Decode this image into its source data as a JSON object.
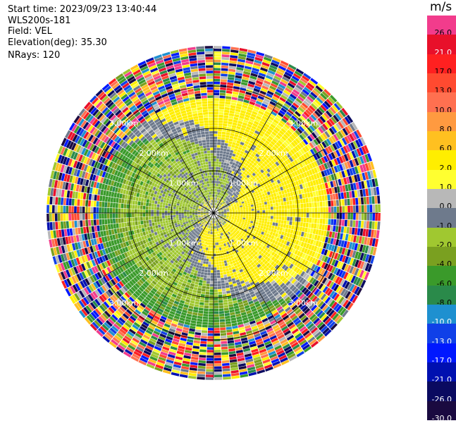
{
  "info": {
    "start_time": "Start time: 2023/09/23 13:40:44",
    "instrument": "WLS200s-181",
    "field": "Field: VEL",
    "elevation": "Elevation(deg): 35.30",
    "nrays": "NRays: 120"
  },
  "colorbar": {
    "unit": "m/s",
    "bins": [
      {
        "label": "26.0",
        "color": "#f23c8c"
      },
      {
        "label": "21.0",
        "color": "#e8102a"
      },
      {
        "label": "17.0",
        "color": "#ff2020"
      },
      {
        "label": "13.0",
        "color": "#ff4a30"
      },
      {
        "label": "10.0",
        "color": "#ff7050"
      },
      {
        "label": "8.0",
        "color": "#ff9a40"
      },
      {
        "label": "6.0",
        "color": "#ffc020"
      },
      {
        "label": "2.0",
        "color": "#ffee00"
      },
      {
        "label": "1.0",
        "color": "#ffff30"
      },
      {
        "label": "0.0",
        "color": "#b8b8b8"
      },
      {
        "label": "-1.0",
        "color": "#6e7a8c"
      },
      {
        "label": "-2.0",
        "color": "#a0c830"
      },
      {
        "label": "-4.0",
        "color": "#7aa020"
      },
      {
        "label": "-6.0",
        "color": "#3a9a2a"
      },
      {
        "label": "-8.0",
        "color": "#2a8a4a"
      },
      {
        "label": "-10.0",
        "color": "#1e90d0"
      },
      {
        "label": "-13.0",
        "color": "#1040e8"
      },
      {
        "label": "-17.0",
        "color": "#0018ff"
      },
      {
        "label": "-21.0",
        "color": "#0010b0"
      },
      {
        "label": "-26.0",
        "color": "#0a0a60"
      },
      {
        "label": "-30.0",
        "color": "#1a0a40"
      }
    ]
  },
  "chart_data": {
    "type": "heatmap",
    "plot": "PPI (plan position indicator), polar",
    "field": "VEL",
    "units": "m/s",
    "nrays": 120,
    "range_rings_km": [
      1.0,
      2.0,
      3.0
    ],
    "range_ring_labels": [
      "1.00km",
      "2.00km",
      "3.00km"
    ],
    "spokes_deg": [
      0,
      30,
      60,
      90,
      120,
      150,
      180,
      210,
      240,
      270,
      300,
      330
    ],
    "zones_km": [
      {
        "from_km": 0.0,
        "to_km": 0.4,
        "description": "mixed near-zero"
      },
      {
        "from_km": 0.4,
        "to_km": 2.2,
        "north_half": "1.0 to 2.0 m/s",
        "south_half": "-2.0 to -4.0 m/s",
        "transition": "0.0 to -1.0 m/s"
      },
      {
        "from_km": 2.2,
        "to_km": 2.6,
        "north_half": "1.0 to 2.0 m/s",
        "south_half": "-4.0 to -6.0 m/s"
      },
      {
        "from_km": 2.6,
        "to_km": 3.9,
        "description": "noise, full colour range"
      }
    ]
  }
}
